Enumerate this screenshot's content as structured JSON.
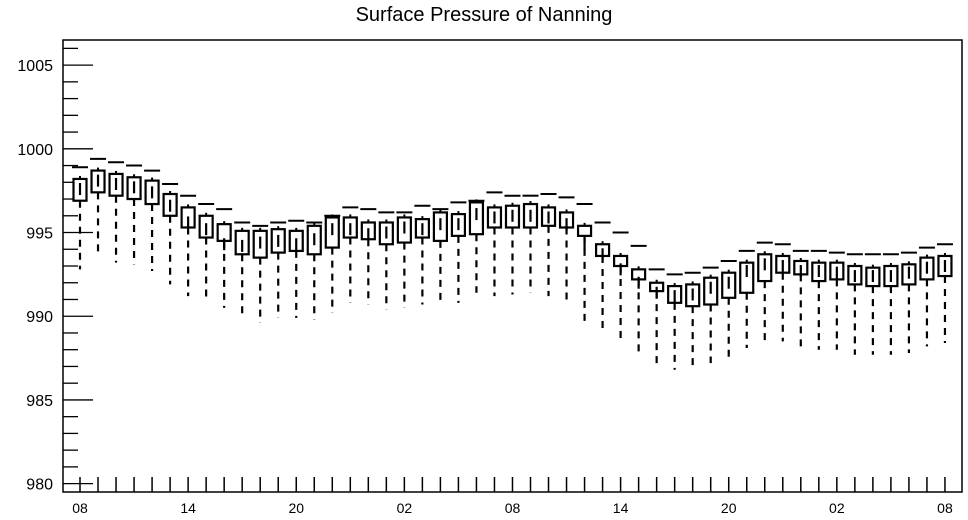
{
  "chart_data": {
    "type": "box",
    "title": "Surface Pressure of Nanning",
    "xlabel": "",
    "ylabel": "",
    "ylim": [
      979.5,
      1006.5
    ],
    "yticks": [
      980,
      985,
      990,
      995,
      1000,
      1005
    ],
    "xtick_labels": [
      "08",
      "14",
      "20",
      "02",
      "08",
      "14",
      "20",
      "02",
      "08"
    ],
    "x_hours": [
      8,
      9,
      10,
      11,
      12,
      13,
      14,
      15,
      16,
      17,
      18,
      19,
      20,
      21,
      22,
      23,
      0,
      1,
      2,
      3,
      4,
      5,
      6,
      7,
      8,
      9,
      10,
      11,
      12,
      13,
      14,
      15,
      16,
      17,
      18,
      19,
      20,
      21,
      22,
      23,
      0,
      1,
      2,
      3,
      4,
      5,
      6,
      7,
      8
    ],
    "boxes": {
      "q1": [
        996.9,
        997.4,
        997.2,
        997.0,
        996.7,
        996.0,
        995.3,
        994.7,
        994.5,
        993.7,
        993.5,
        993.8,
        993.9,
        993.7,
        994.1,
        994.7,
        994.6,
        994.3,
        994.4,
        994.7,
        994.5,
        994.8,
        994.9,
        995.3,
        995.3,
        995.3,
        995.4,
        995.3,
        994.8,
        993.6,
        993.0,
        992.2,
        991.5,
        990.8,
        990.6,
        990.7,
        991.1,
        991.4,
        992.1,
        992.6,
        992.5,
        992.1,
        992.2,
        991.9,
        991.8,
        991.8,
        991.9,
        992.2,
        992.4
      ],
      "median": [
        997.6,
        998.1,
        997.9,
        997.7,
        997.4,
        996.6,
        995.6,
        995.2,
        994.3,
        994.2,
        994.4,
        994.5,
        994.3,
        994.6,
        995.2,
        995.2,
        994.9,
        995.0,
        995.3,
        995.2,
        995.5,
        995.5,
        996.1,
        995.9,
        996.0,
        996.0,
        995.9,
        995.5,
        994.3,
        993.7,
        992.8,
        992.0,
        991.4,
        991.2,
        991.3,
        991.7,
        992.0,
        992.7,
        993.1,
        993.0,
        992.7,
        992.7,
        992.6,
        992.4,
        992.4,
        992.4,
        992.6,
        992.9,
        993.0
      ],
      "q3": [
        998.2,
        998.7,
        998.5,
        998.3,
        998.1,
        997.3,
        996.5,
        996.0,
        995.5,
        995.1,
        995.1,
        995.2,
        995.1,
        995.4,
        995.9,
        995.9,
        995.6,
        995.6,
        995.9,
        995.8,
        996.2,
        996.1,
        996.8,
        996.5,
        996.6,
        996.7,
        996.5,
        996.2,
        995.4,
        994.3,
        993.6,
        992.8,
        992.0,
        991.8,
        991.9,
        992.3,
        992.6,
        993.2,
        993.7,
        993.6,
        993.3,
        993.2,
        993.2,
        993.0,
        992.9,
        993.0,
        993.1,
        993.5,
        993.6
      ],
      "whisker_low": [
        992.8,
        993.6,
        993.2,
        993.1,
        992.7,
        991.9,
        991.2,
        990.9,
        990.5,
        989.9,
        989.6,
        989.9,
        989.9,
        989.8,
        990.2,
        990.8,
        990.7,
        990.4,
        990.5,
        990.7,
        990.7,
        990.8,
        991.4,
        991.2,
        991.3,
        991.4,
        991.2,
        990.9,
        989.7,
        989.1,
        988.4,
        987.7,
        987.1,
        986.8,
        986.8,
        987.2,
        987.5,
        988.1,
        988.5,
        988.5,
        988.1,
        988.0,
        988.0,
        987.7,
        987.7,
        987.7,
        987.8,
        988.2,
        988.4
      ],
      "whisker_high": [
        998.9,
        999.4,
        999.2,
        999.0,
        998.7,
        997.9,
        997.2,
        996.7,
        996.4,
        995.6,
        995.4,
        995.6,
        995.7,
        995.6,
        996.0,
        996.5,
        996.4,
        996.2,
        996.2,
        996.6,
        996.4,
        996.8,
        996.9,
        997.4,
        997.2,
        997.2,
        997.3,
        997.1,
        996.7,
        995.6,
        995.0,
        994.2,
        992.8,
        992.5,
        992.6,
        992.9,
        993.3,
        993.9,
        994.4,
        994.3,
        993.9,
        993.9,
        993.8,
        993.7,
        993.7,
        993.7,
        993.8,
        994.1,
        994.3
      ]
    }
  }
}
